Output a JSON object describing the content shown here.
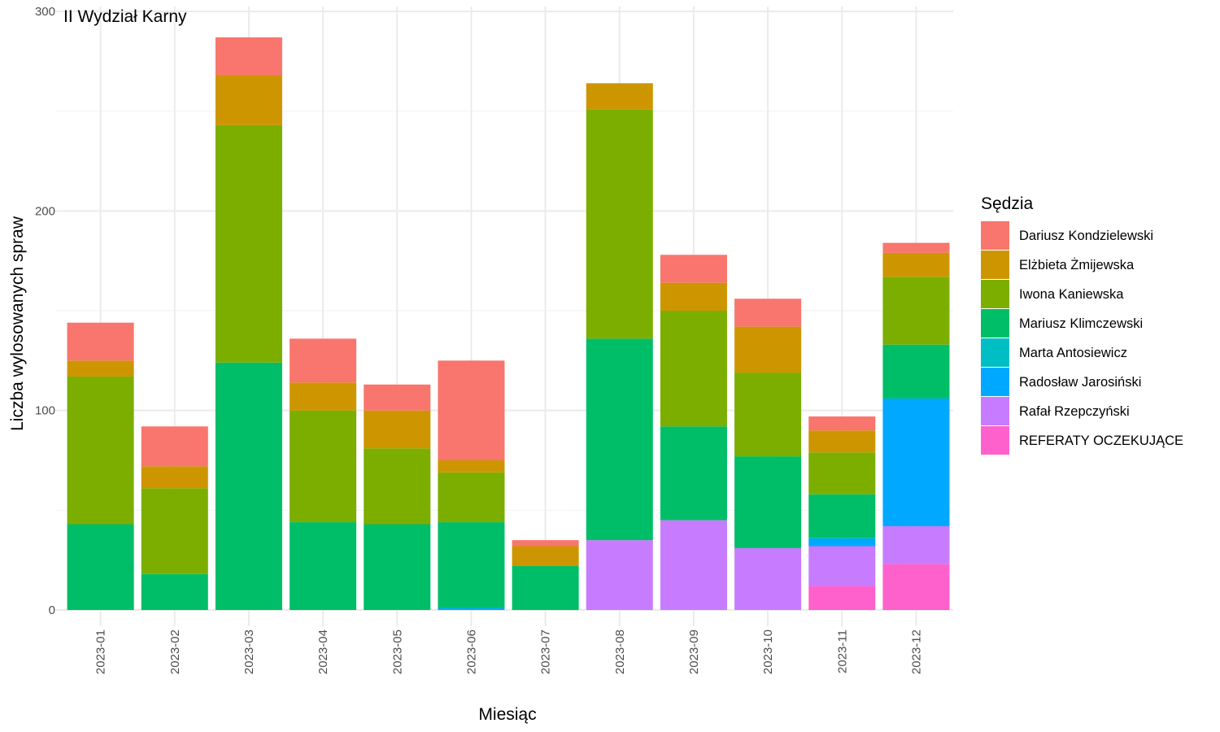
{
  "chart_data": {
    "type": "bar",
    "stacked": true,
    "title": "II Wydział Karny",
    "xlabel": "Miesiąc",
    "ylabel": "Liczba wylosowanych spraw",
    "ylim": [
      0,
      300
    ],
    "yticks": [
      0,
      100,
      200,
      300
    ],
    "grid": true,
    "legend_position": "right",
    "legend_title": "Sędzia",
    "categories": [
      "2023-01",
      "2023-02",
      "2023-03",
      "2023-04",
      "2023-05",
      "2023-06",
      "2023-07",
      "2023-08",
      "2023-09",
      "2023-10",
      "2023-11",
      "2023-12"
    ],
    "series": [
      {
        "name": "Dariusz Kondzielewski",
        "color": "#F8766D",
        "values": [
          19,
          20,
          19,
          22,
          13,
          50,
          3,
          0,
          14,
          14,
          7,
          5
        ]
      },
      {
        "name": "Elżbieta Żmijewska",
        "color": "#CD9600",
        "values": [
          8,
          11,
          25,
          14,
          19,
          6,
          10,
          13,
          14,
          23,
          11,
          12
        ]
      },
      {
        "name": "Iwona Kaniewska",
        "color": "#7CAE00",
        "values": [
          74,
          43,
          119,
          56,
          38,
          25,
          0,
          115,
          58,
          42,
          21,
          34
        ]
      },
      {
        "name": "Mariusz Klimczewski",
        "color": "#00BE67",
        "values": [
          43,
          18,
          124,
          44,
          43,
          43,
          22,
          101,
          47,
          46,
          22,
          27
        ]
      },
      {
        "name": "Marta Antosiewicz",
        "color": "#00BFC4",
        "values": [
          0,
          0,
          0,
          0,
          0,
          0,
          0,
          0,
          0,
          0,
          0,
          0
        ]
      },
      {
        "name": "Radosław Jarosiński",
        "color": "#00A9FF",
        "values": [
          0,
          0,
          0,
          0,
          0,
          1,
          0,
          0,
          0,
          0,
          4,
          64
        ]
      },
      {
        "name": "Rafał Rzepczyński",
        "color": "#C77CFF",
        "values": [
          0,
          0,
          0,
          0,
          0,
          0,
          0,
          35,
          45,
          31,
          20,
          19
        ]
      },
      {
        "name": "REFERATY OCZEKUJĄCE",
        "color": "#FF61CC",
        "values": [
          0,
          0,
          0,
          0,
          0,
          0,
          0,
          0,
          0,
          0,
          12,
          23
        ]
      }
    ]
  }
}
